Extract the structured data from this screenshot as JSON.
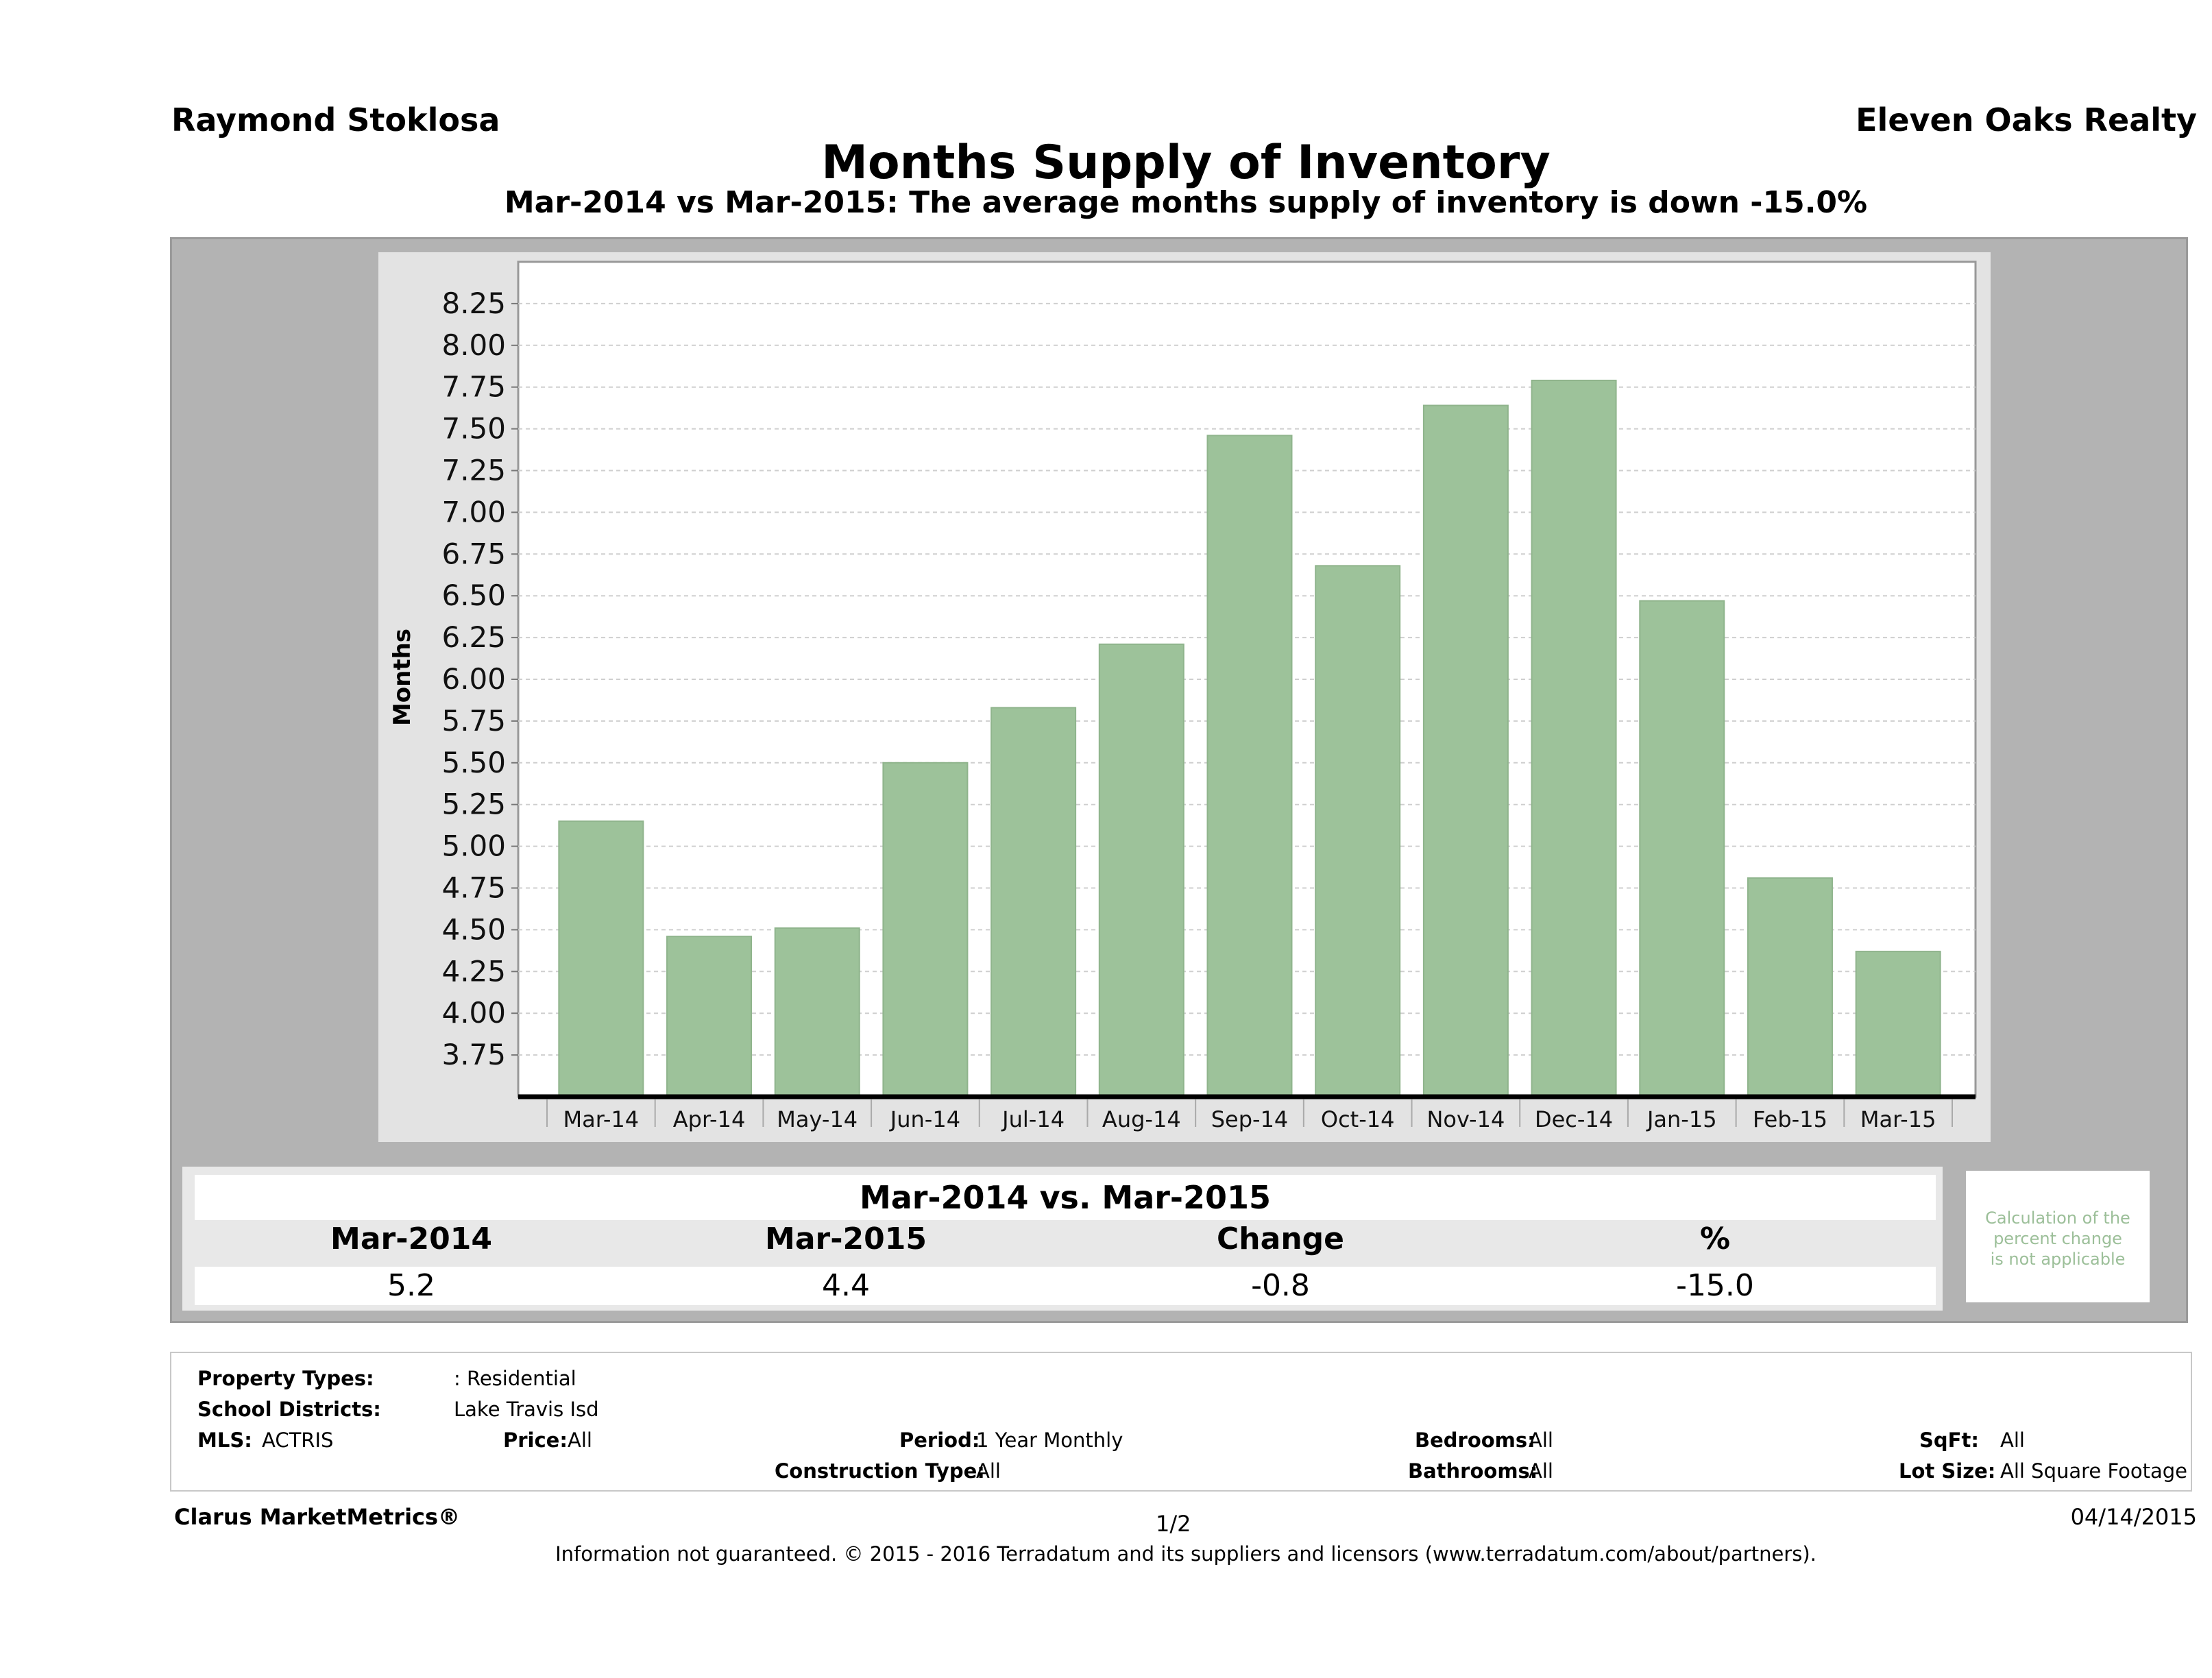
{
  "header": {
    "agent": "Raymond Stoklosa",
    "company": "Eleven Oaks Realty"
  },
  "chart_data": {
    "type": "bar",
    "title": "Months Supply of Inventory",
    "subtitle": "Mar-2014 vs Mar-2015: The average months supply of inventory is down -15.0%",
    "ylabel": "Months",
    "xlabel": "",
    "ylim": [
      3.5,
      8.5
    ],
    "y_ticks": [
      "3.75",
      "4.00",
      "4.25",
      "4.50",
      "4.75",
      "5.00",
      "5.25",
      "5.50",
      "5.75",
      "6.00",
      "6.25",
      "6.50",
      "6.75",
      "7.00",
      "7.25",
      "7.50",
      "7.75",
      "8.00",
      "8.25"
    ],
    "categories": [
      "Mar-14",
      "Apr-14",
      "May-14",
      "Jun-14",
      "Jul-14",
      "Aug-14",
      "Sep-14",
      "Oct-14",
      "Nov-14",
      "Dec-14",
      "Jan-15",
      "Feb-15",
      "Mar-15"
    ],
    "values": [
      5.15,
      4.46,
      4.51,
      5.5,
      5.83,
      6.21,
      7.46,
      6.68,
      7.64,
      7.79,
      6.47,
      4.81,
      4.37
    ],
    "grid": true,
    "bar_color": "#9dc29a"
  },
  "summary": {
    "title": "Mar-2014 vs. Mar-2015",
    "headers": [
      "Mar-2014",
      "Mar-2015",
      "Change",
      "%"
    ],
    "values": [
      "5.2",
      "4.4",
      "-0.8",
      "-15.0"
    ],
    "note": [
      "Calculation of the",
      "percent change",
      "is not applicable"
    ]
  },
  "criteria": {
    "property_types_label": "Property Types:",
    "property_types_value": ": Residential",
    "school_districts_label": "School Districts:",
    "school_districts_value": "Lake Travis Isd",
    "mls_label": "MLS:",
    "mls_value": "ACTRIS",
    "price_label": "Price:",
    "price_value": "All",
    "period_label": "Period:",
    "period_value": "1 Year Monthly",
    "construction_label": "Construction Type:",
    "construction_value": "All",
    "bedrooms_label": "Bedrooms:",
    "bedrooms_value": "All",
    "bathrooms_label": "Bathrooms:",
    "bathrooms_value": "All",
    "sqft_label": "SqFt:",
    "sqft_value": "All",
    "lotsize_label": "Lot Size:",
    "lotsize_value": "All Square Footage"
  },
  "footer": {
    "brand": "Clarus MarketMetrics®",
    "page": "1/2",
    "date": "04/14/2015",
    "disclaimer": "Information not guaranteed. © 2015 - 2016 Terradatum and its suppliers and licensors (www.terradatum.com/about/partners)."
  }
}
